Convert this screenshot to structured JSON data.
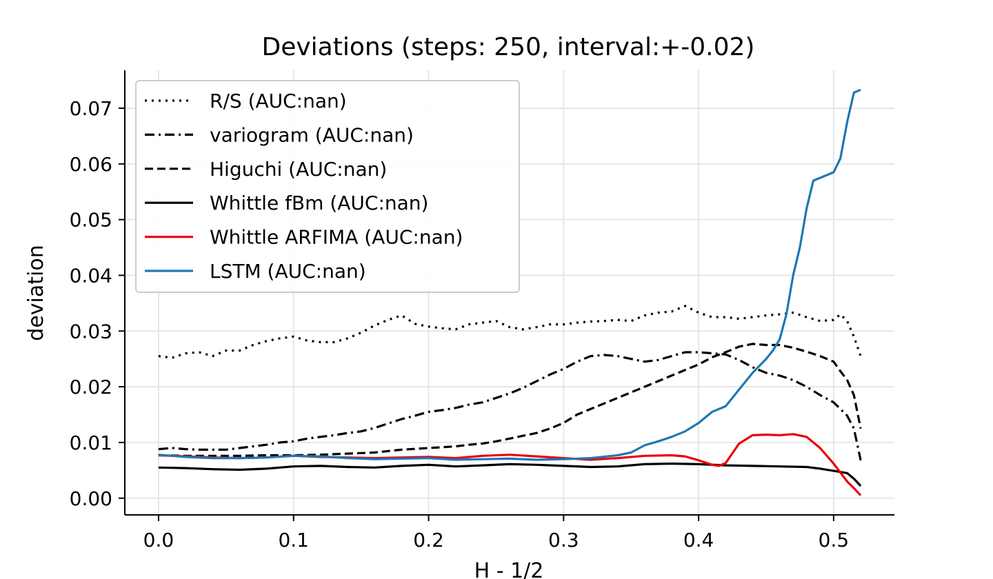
{
  "chart_data": {
    "type": "line",
    "title": "Deviations (steps: 250, interval:+-0.02)",
    "xlabel": "H - 1/2",
    "ylabel": "deviation",
    "xlim": [
      -0.025,
      0.545
    ],
    "ylim": [
      -0.003,
      0.0768
    ],
    "x_ticks": [
      0.0,
      0.1,
      0.2,
      0.3,
      0.4,
      0.5
    ],
    "x_tick_labels": [
      "0.0",
      "0.1",
      "0.2",
      "0.3",
      "0.4",
      "0.5"
    ],
    "y_ticks": [
      0.0,
      0.01,
      0.02,
      0.03,
      0.04,
      0.05,
      0.06,
      0.07
    ],
    "y_tick_labels": [
      "0.00",
      "0.01",
      "0.02",
      "0.03",
      "0.04",
      "0.05",
      "0.06",
      "0.07"
    ],
    "grid": true,
    "legend_position": "upper-left",
    "series": [
      {
        "name": "R/S (AUC:nan)",
        "color": "#000000",
        "dash": "dotted",
        "points": [
          [
            0,
            0.0255
          ],
          [
            0.01,
            0.0252
          ],
          [
            0.02,
            0.026
          ],
          [
            0.03,
            0.0262
          ],
          [
            0.04,
            0.0255
          ],
          [
            0.05,
            0.0265
          ],
          [
            0.06,
            0.0265
          ],
          [
            0.07,
            0.0275
          ],
          [
            0.08,
            0.0282
          ],
          [
            0.09,
            0.0287
          ],
          [
            0.1,
            0.029
          ],
          [
            0.11,
            0.0283
          ],
          [
            0.12,
            0.028
          ],
          [
            0.13,
            0.028
          ],
          [
            0.14,
            0.0287
          ],
          [
            0.15,
            0.0297
          ],
          [
            0.16,
            0.031
          ],
          [
            0.17,
            0.032
          ],
          [
            0.18,
            0.0328
          ],
          [
            0.19,
            0.0313
          ],
          [
            0.2,
            0.0308
          ],
          [
            0.21,
            0.0305
          ],
          [
            0.22,
            0.0303
          ],
          [
            0.23,
            0.0312
          ],
          [
            0.24,
            0.0315
          ],
          [
            0.25,
            0.0318
          ],
          [
            0.26,
            0.0307
          ],
          [
            0.27,
            0.0303
          ],
          [
            0.28,
            0.0307
          ],
          [
            0.29,
            0.0312
          ],
          [
            0.3,
            0.0312
          ],
          [
            0.31,
            0.0315
          ],
          [
            0.32,
            0.0317
          ],
          [
            0.33,
            0.0318
          ],
          [
            0.34,
            0.032
          ],
          [
            0.35,
            0.0318
          ],
          [
            0.36,
            0.0328
          ],
          [
            0.37,
            0.0333
          ],
          [
            0.38,
            0.0335
          ],
          [
            0.39,
            0.0345
          ],
          [
            0.4,
            0.0333
          ],
          [
            0.41,
            0.0325
          ],
          [
            0.42,
            0.0325
          ],
          [
            0.43,
            0.0322
          ],
          [
            0.44,
            0.0325
          ],
          [
            0.45,
            0.0328
          ],
          [
            0.46,
            0.033
          ],
          [
            0.47,
            0.0333
          ],
          [
            0.48,
            0.0325
          ],
          [
            0.49,
            0.0318
          ],
          [
            0.5,
            0.032
          ],
          [
            0.505,
            0.033
          ],
          [
            0.51,
            0.0318
          ],
          [
            0.515,
            0.029
          ],
          [
            0.52,
            0.0255
          ]
        ]
      },
      {
        "name": "variogram (AUC:nan)",
        "color": "#000000",
        "dash": "dashdot",
        "points": [
          [
            0,
            0.0088
          ],
          [
            0.01,
            0.009
          ],
          [
            0.02,
            0.0088
          ],
          [
            0.03,
            0.0087
          ],
          [
            0.04,
            0.0087
          ],
          [
            0.05,
            0.0087
          ],
          [
            0.06,
            0.009
          ],
          [
            0.07,
            0.0093
          ],
          [
            0.08,
            0.0096
          ],
          [
            0.09,
            0.01
          ],
          [
            0.1,
            0.0102
          ],
          [
            0.11,
            0.0107
          ],
          [
            0.12,
            0.011
          ],
          [
            0.13,
            0.0113
          ],
          [
            0.14,
            0.0117
          ],
          [
            0.15,
            0.012
          ],
          [
            0.16,
            0.0126
          ],
          [
            0.17,
            0.0134
          ],
          [
            0.18,
            0.0142
          ],
          [
            0.19,
            0.0148
          ],
          [
            0.2,
            0.0155
          ],
          [
            0.21,
            0.0158
          ],
          [
            0.22,
            0.0162
          ],
          [
            0.23,
            0.0168
          ],
          [
            0.24,
            0.0172
          ],
          [
            0.25,
            0.018
          ],
          [
            0.26,
            0.0188
          ],
          [
            0.27,
            0.0198
          ],
          [
            0.28,
            0.021
          ],
          [
            0.29,
            0.0222
          ],
          [
            0.3,
            0.0232
          ],
          [
            0.31,
            0.0245
          ],
          [
            0.32,
            0.0255
          ],
          [
            0.33,
            0.0257
          ],
          [
            0.34,
            0.0255
          ],
          [
            0.35,
            0.025
          ],
          [
            0.36,
            0.0245
          ],
          [
            0.37,
            0.0248
          ],
          [
            0.38,
            0.0255
          ],
          [
            0.39,
            0.0262
          ],
          [
            0.4,
            0.0262
          ],
          [
            0.41,
            0.026
          ],
          [
            0.42,
            0.0258
          ],
          [
            0.43,
            0.0248
          ],
          [
            0.44,
            0.0235
          ],
          [
            0.45,
            0.0225
          ],
          [
            0.46,
            0.022
          ],
          [
            0.47,
            0.0212
          ],
          [
            0.48,
            0.02
          ],
          [
            0.49,
            0.0185
          ],
          [
            0.5,
            0.0172
          ],
          [
            0.51,
            0.0148
          ],
          [
            0.515,
            0.0125
          ],
          [
            0.52,
            0.0068
          ]
        ]
      },
      {
        "name": "Higuchi (AUC:nan)",
        "color": "#000000",
        "dash": "dashed",
        "points": [
          [
            0,
            0.0077
          ],
          [
            0.02,
            0.0076
          ],
          [
            0.04,
            0.0076
          ],
          [
            0.06,
            0.0076
          ],
          [
            0.08,
            0.0077
          ],
          [
            0.1,
            0.0077
          ],
          [
            0.12,
            0.0078
          ],
          [
            0.14,
            0.008
          ],
          [
            0.16,
            0.0082
          ],
          [
            0.18,
            0.0087
          ],
          [
            0.2,
            0.009
          ],
          [
            0.22,
            0.0093
          ],
          [
            0.23,
            0.0096
          ],
          [
            0.24,
            0.0098
          ],
          [
            0.25,
            0.0102
          ],
          [
            0.26,
            0.0107
          ],
          [
            0.27,
            0.0112
          ],
          [
            0.28,
            0.0117
          ],
          [
            0.29,
            0.0125
          ],
          [
            0.3,
            0.0135
          ],
          [
            0.31,
            0.015
          ],
          [
            0.32,
            0.016
          ],
          [
            0.33,
            0.017
          ],
          [
            0.34,
            0.018
          ],
          [
            0.35,
            0.019
          ],
          [
            0.36,
            0.02
          ],
          [
            0.37,
            0.021
          ],
          [
            0.38,
            0.022
          ],
          [
            0.39,
            0.023
          ],
          [
            0.4,
            0.024
          ],
          [
            0.41,
            0.0253
          ],
          [
            0.42,
            0.0262
          ],
          [
            0.43,
            0.0272
          ],
          [
            0.44,
            0.0277
          ],
          [
            0.45,
            0.0275
          ],
          [
            0.46,
            0.0275
          ],
          [
            0.47,
            0.027
          ],
          [
            0.48,
            0.0263
          ],
          [
            0.49,
            0.0255
          ],
          [
            0.5,
            0.0245
          ],
          [
            0.505,
            0.0228
          ],
          [
            0.51,
            0.0212
          ],
          [
            0.515,
            0.0185
          ],
          [
            0.52,
            0.0125
          ]
        ]
      },
      {
        "name": "Whittle fBm (AUC:nan)",
        "color": "#000000",
        "dash": "solid",
        "points": [
          [
            0,
            0.0055
          ],
          [
            0.02,
            0.0054
          ],
          [
            0.04,
            0.0052
          ],
          [
            0.06,
            0.0051
          ],
          [
            0.08,
            0.0053
          ],
          [
            0.1,
            0.0057
          ],
          [
            0.12,
            0.0058
          ],
          [
            0.14,
            0.0056
          ],
          [
            0.16,
            0.0055
          ],
          [
            0.18,
            0.0058
          ],
          [
            0.2,
            0.006
          ],
          [
            0.22,
            0.0057
          ],
          [
            0.24,
            0.0059
          ],
          [
            0.26,
            0.0061
          ],
          [
            0.28,
            0.006
          ],
          [
            0.3,
            0.0058
          ],
          [
            0.32,
            0.0056
          ],
          [
            0.34,
            0.0057
          ],
          [
            0.36,
            0.0061
          ],
          [
            0.38,
            0.0062
          ],
          [
            0.4,
            0.0061
          ],
          [
            0.42,
            0.0059
          ],
          [
            0.44,
            0.0058
          ],
          [
            0.46,
            0.0057
          ],
          [
            0.48,
            0.0056
          ],
          [
            0.49,
            0.0053
          ],
          [
            0.5,
            0.0049
          ],
          [
            0.51,
            0.0045
          ],
          [
            0.515,
            0.0035
          ],
          [
            0.52,
            0.0022
          ]
        ]
      },
      {
        "name": "Whittle ARFIMA (AUC:nan)",
        "color": "#e8000b",
        "dash": "solid",
        "points": [
          [
            0,
            0.0077
          ],
          [
            0.02,
            0.0075
          ],
          [
            0.04,
            0.0073
          ],
          [
            0.06,
            0.0072
          ],
          [
            0.08,
            0.0073
          ],
          [
            0.1,
            0.0076
          ],
          [
            0.12,
            0.0074
          ],
          [
            0.14,
            0.0073
          ],
          [
            0.16,
            0.0072
          ],
          [
            0.18,
            0.0073
          ],
          [
            0.2,
            0.0074
          ],
          [
            0.22,
            0.0072
          ],
          [
            0.24,
            0.0076
          ],
          [
            0.26,
            0.0078
          ],
          [
            0.28,
            0.0075
          ],
          [
            0.3,
            0.0072
          ],
          [
            0.32,
            0.0069
          ],
          [
            0.34,
            0.0072
          ],
          [
            0.36,
            0.0076
          ],
          [
            0.38,
            0.0077
          ],
          [
            0.39,
            0.0075
          ],
          [
            0.4,
            0.0068
          ],
          [
            0.41,
            0.006
          ],
          [
            0.415,
            0.0058
          ],
          [
            0.42,
            0.0063
          ],
          [
            0.43,
            0.0098
          ],
          [
            0.44,
            0.0113
          ],
          [
            0.45,
            0.0114
          ],
          [
            0.46,
            0.0113
          ],
          [
            0.47,
            0.0115
          ],
          [
            0.48,
            0.011
          ],
          [
            0.49,
            0.009
          ],
          [
            0.5,
            0.0062
          ],
          [
            0.51,
            0.003
          ],
          [
            0.515,
            0.0018
          ],
          [
            0.52,
            0.0005
          ]
        ]
      },
      {
        "name": "LSTM (AUC:nan)",
        "color": "#1f77b4",
        "dash": "solid",
        "points": [
          [
            0,
            0.0078
          ],
          [
            0.02,
            0.0074
          ],
          [
            0.04,
            0.0072
          ],
          [
            0.06,
            0.0072
          ],
          [
            0.08,
            0.0073
          ],
          [
            0.1,
            0.0076
          ],
          [
            0.12,
            0.0075
          ],
          [
            0.14,
            0.0072
          ],
          [
            0.16,
            0.007
          ],
          [
            0.18,
            0.0071
          ],
          [
            0.2,
            0.0072
          ],
          [
            0.22,
            0.0069
          ],
          [
            0.24,
            0.007
          ],
          [
            0.26,
            0.0071
          ],
          [
            0.28,
            0.0069
          ],
          [
            0.3,
            0.007
          ],
          [
            0.32,
            0.0072
          ],
          [
            0.34,
            0.0077
          ],
          [
            0.35,
            0.0082
          ],
          [
            0.36,
            0.0095
          ],
          [
            0.37,
            0.0102
          ],
          [
            0.38,
            0.011
          ],
          [
            0.39,
            0.012
          ],
          [
            0.4,
            0.0135
          ],
          [
            0.41,
            0.0155
          ],
          [
            0.42,
            0.0165
          ],
          [
            0.43,
            0.0195
          ],
          [
            0.44,
            0.0225
          ],
          [
            0.45,
            0.025
          ],
          [
            0.455,
            0.0265
          ],
          [
            0.46,
            0.0285
          ],
          [
            0.465,
            0.033
          ],
          [
            0.47,
            0.04
          ],
          [
            0.475,
            0.045
          ],
          [
            0.48,
            0.052
          ],
          [
            0.485,
            0.057
          ],
          [
            0.49,
            0.0575
          ],
          [
            0.495,
            0.058
          ],
          [
            0.5,
            0.0585
          ],
          [
            0.505,
            0.061
          ],
          [
            0.51,
            0.0675
          ],
          [
            0.515,
            0.0728
          ],
          [
            0.52,
            0.0733
          ]
        ]
      }
    ]
  }
}
